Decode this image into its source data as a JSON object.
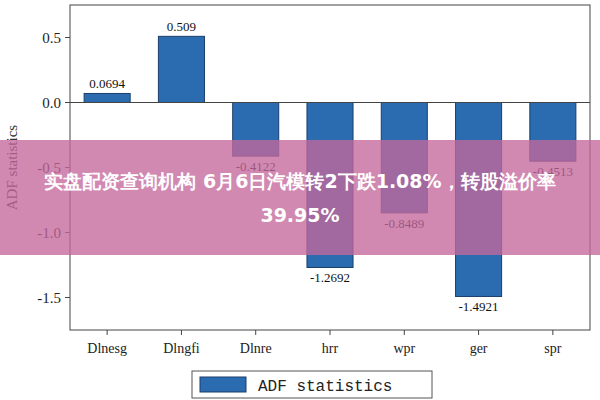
{
  "chart_data": {
    "type": "bar",
    "y_label": "ADF statistics",
    "categories": [
      "Dlnesg",
      "Dlngfi",
      "Dlnre",
      "hrr",
      "wpr",
      "ger",
      "spr"
    ],
    "series": [
      {
        "name": "ADF statistics",
        "color": "#2b6cb0",
        "values": [
          0.0694,
          0.509,
          -0.4122,
          -1.2692,
          -0.8489,
          -1.4921,
          -0.4513
        ]
      }
    ],
    "ylim": [
      -1.75,
      0.75
    ],
    "yticks": [
      -1.5,
      {
        "value": -1.0,
        "label": "-1.0"
      },
      -0.5,
      {
        "value": 0,
        "label": "0.0"
      },
      0.5
    ],
    "data_labels": true,
    "legend": "bottom",
    "annotations": [
      "实盘配资查询机构 6月6日汽模转2下跌1.08%，转股溢价率39.95%"
    ]
  }
}
